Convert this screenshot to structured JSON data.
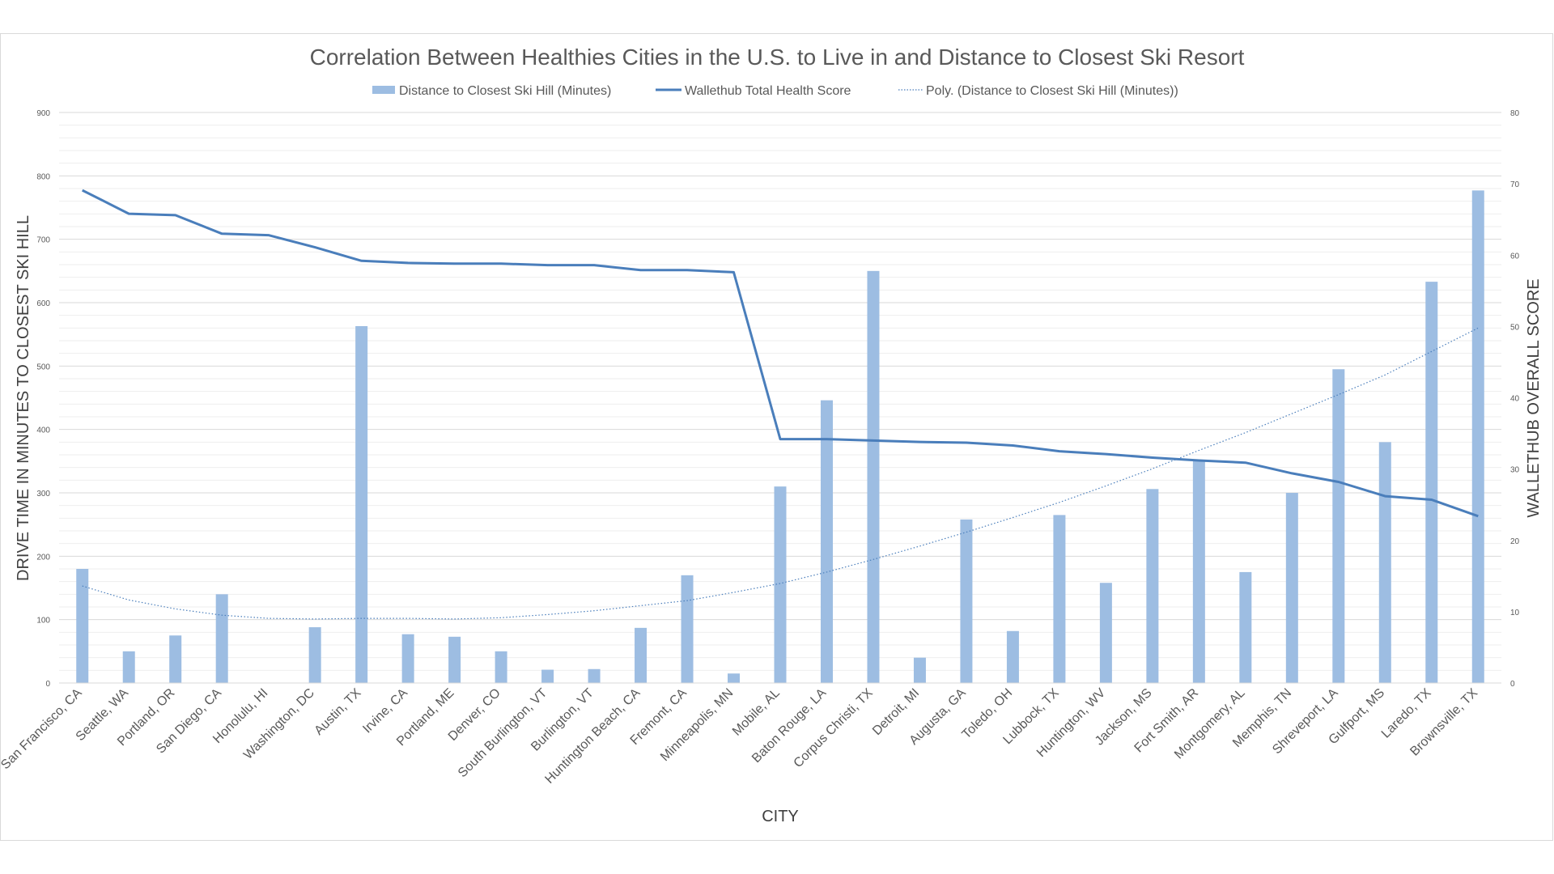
{
  "chart_data": {
    "type": "bar",
    "title": "Correlation Between Healthies Cities in the U.S. to Live in and Distance to Closest Ski Resort",
    "xlabel": "CITY",
    "ylabel": "DRIVE TIME IN MINUTES TO CLOSEST SKI HILL",
    "y2label": "WALLETHUB OVERALL SCORE",
    "ylim": [
      0,
      900
    ],
    "y2lim": [
      0,
      80
    ],
    "yticks": [
      0,
      100,
      200,
      300,
      400,
      500,
      600,
      700,
      800,
      900
    ],
    "y2ticks": [
      0,
      10,
      20,
      30,
      40,
      50,
      60,
      70,
      80
    ],
    "grid": true,
    "legend_position": "top",
    "colors": {
      "bar": "#9dbde2",
      "line": "#4a7ebb",
      "trend": "#4a7ebb"
    },
    "categories": [
      "San Francisco, CA",
      "Seattle, WA",
      "Portland, OR",
      "San Diego, CA",
      "Honolulu, HI",
      "Washington, DC",
      "Austin, TX",
      "Irvine, CA",
      "Portland, ME",
      "Denver, CO",
      "South Burlington, VT",
      "Burlington, VT",
      "Huntington Beach, CA",
      "Fremont, CA",
      "Minneapolis, MN",
      "Mobile, AL",
      "Baton Rouge, LA",
      "Corpus Christi, TX",
      "Detroit, MI",
      "Augusta, GA",
      "Toledo, OH",
      "Lubbock, TX",
      "Huntington, WV",
      "Jackson, MS",
      "Fort Smith, AR",
      "Montgomery, AL",
      "Memphis, TN",
      "Shreveport, LA",
      "Gulfport, MS",
      "Laredo, TX",
      "Brownsville, TX"
    ],
    "series": [
      {
        "name": "Distance to Closest Ski Hill (Minutes)",
        "type": "bar",
        "axis": "left",
        "values": [
          180,
          50,
          75,
          140,
          0,
          88,
          563,
          77,
          73,
          50,
          21,
          22,
          87,
          170,
          15,
          310,
          446,
          650,
          40,
          258,
          82,
          265,
          158,
          306,
          352,
          175,
          300,
          495,
          380,
          633,
          777
        ]
      },
      {
        "name": "Wallethub Total Health Score",
        "type": "line",
        "axis": "right",
        "values": [
          69.1,
          65.8,
          65.6,
          63.0,
          62.8,
          61.1,
          59.2,
          58.9,
          58.8,
          58.8,
          58.6,
          58.6,
          57.9,
          57.9,
          57.6,
          34.2,
          34.2,
          34.0,
          33.8,
          33.7,
          33.3,
          32.5,
          32.1,
          31.6,
          31.2,
          30.9,
          29.4,
          28.2,
          26.2,
          25.7,
          23.4
        ]
      },
      {
        "name": "Poly. (Distance to Closest Ski Hill (Minutes))",
        "type": "trendline",
        "axis": "left",
        "values": [
          153,
          131,
          117,
          107,
          102,
          101,
          102,
          102,
          101,
          103,
          108,
          114,
          122,
          130,
          143,
          157,
          175,
          195,
          216,
          238,
          261,
          285,
          311,
          338,
          367,
          395,
          425,
          455,
          486,
          523,
          560
        ]
      }
    ]
  }
}
